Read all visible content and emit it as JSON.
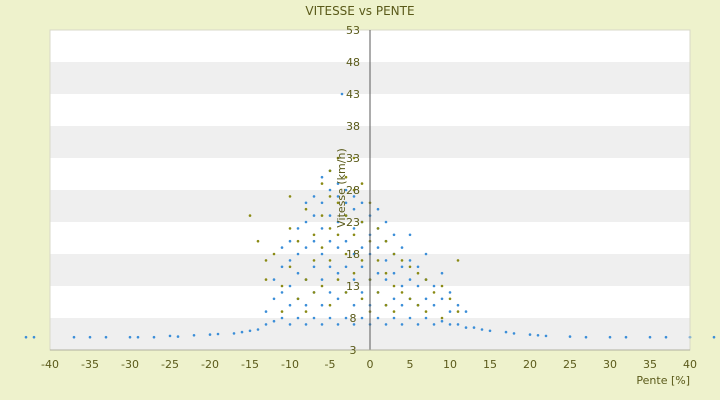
{
  "chart_data": {
    "type": "scatter",
    "title": "VITESSE vs PENTE",
    "xlabel": "Pente [%]",
    "ylabel": "Vitesse (km/h)",
    "xlim": [
      -40,
      40
    ],
    "ylim": [
      3,
      53
    ],
    "x_ticks": [
      -40,
      -35,
      -30,
      -25,
      -20,
      -15,
      -10,
      -5,
      0,
      5,
      10,
      15,
      20,
      25,
      30,
      35,
      40
    ],
    "y_ticks": [
      3,
      8,
      13,
      18,
      23,
      28,
      33,
      38,
      43,
      48,
      53
    ],
    "legend": "none",
    "grid": "horizontal banded",
    "colors": {
      "background": "#eef2cc",
      "plot_band_light": "#ffffff",
      "plot_band_dark": "#efefef",
      "series_blue": "#3b8ed8",
      "series_olive": "#8a8a14",
      "text": "#5a5a1a"
    },
    "series": [
      {
        "color": "#3b8ed8",
        "points": [
          [
            -43,
            5
          ],
          [
            -42,
            5
          ],
          [
            -37,
            5
          ],
          [
            -35,
            5
          ],
          [
            -33,
            5
          ],
          [
            -30,
            5
          ],
          [
            -29,
            5
          ],
          [
            -27,
            5
          ],
          [
            -25,
            5.2
          ],
          [
            -24,
            5.1
          ],
          [
            -22,
            5.3
          ],
          [
            -20,
            5.4
          ],
          [
            -19,
            5.5
          ],
          [
            -17,
            5.6
          ],
          [
            -16,
            5.8
          ],
          [
            -15,
            6
          ],
          [
            -14,
            6.2
          ],
          [
            -13,
            7
          ],
          [
            -13,
            9
          ],
          [
            -12,
            7.5
          ],
          [
            -12,
            11
          ],
          [
            -12,
            14
          ],
          [
            -11,
            8
          ],
          [
            -11,
            12
          ],
          [
            -11,
            16
          ],
          [
            -11,
            19
          ],
          [
            -10,
            7
          ],
          [
            -10,
            10
          ],
          [
            -10,
            13
          ],
          [
            -10,
            17
          ],
          [
            -10,
            20
          ],
          [
            -9,
            8
          ],
          [
            -9,
            11
          ],
          [
            -9,
            15
          ],
          [
            -9,
            18
          ],
          [
            -9,
            22
          ],
          [
            -8,
            7
          ],
          [
            -8,
            10
          ],
          [
            -8,
            14
          ],
          [
            -8,
            19
          ],
          [
            -8,
            23
          ],
          [
            -8,
            26
          ],
          [
            -7,
            8
          ],
          [
            -7,
            12
          ],
          [
            -7,
            16
          ],
          [
            -7,
            20
          ],
          [
            -7,
            24
          ],
          [
            -7,
            27
          ],
          [
            -6,
            7
          ],
          [
            -6,
            10
          ],
          [
            -6,
            14
          ],
          [
            -6,
            18
          ],
          [
            -6,
            22
          ],
          [
            -6,
            26
          ],
          [
            -6,
            30
          ],
          [
            -5,
            8
          ],
          [
            -5,
            12
          ],
          [
            -5,
            16
          ],
          [
            -5,
            20
          ],
          [
            -5,
            24
          ],
          [
            -5,
            28
          ],
          [
            -5,
            31
          ],
          [
            -4,
            7
          ],
          [
            -4,
            11
          ],
          [
            -4,
            15
          ],
          [
            -4,
            19
          ],
          [
            -4,
            23
          ],
          [
            -4,
            27
          ],
          [
            -4,
            29
          ],
          [
            -3.5,
            43
          ],
          [
            -3,
            8
          ],
          [
            -3,
            12
          ],
          [
            -3,
            16
          ],
          [
            -3,
            20
          ],
          [
            -3,
            24
          ],
          [
            -3,
            26
          ],
          [
            -3,
            28
          ],
          [
            -2,
            7
          ],
          [
            -2,
            10
          ],
          [
            -2,
            14
          ],
          [
            -2,
            18
          ],
          [
            -2,
            22
          ],
          [
            -2,
            25
          ],
          [
            -2,
            27
          ],
          [
            -1,
            8
          ],
          [
            -1,
            12
          ],
          [
            -1,
            16
          ],
          [
            -1,
            19
          ],
          [
            -1,
            23
          ],
          [
            -1,
            26
          ],
          [
            0,
            7
          ],
          [
            0,
            10
          ],
          [
            0,
            14
          ],
          [
            0,
            18
          ],
          [
            0,
            21
          ],
          [
            0,
            24
          ],
          [
            1,
            8
          ],
          [
            1,
            12
          ],
          [
            1,
            15
          ],
          [
            1,
            19
          ],
          [
            1,
            22
          ],
          [
            1,
            25
          ],
          [
            2,
            7
          ],
          [
            2,
            10
          ],
          [
            2,
            14
          ],
          [
            2,
            17
          ],
          [
            2,
            20
          ],
          [
            2,
            23
          ],
          [
            3,
            8
          ],
          [
            3,
            11
          ],
          [
            3,
            15
          ],
          [
            3,
            18
          ],
          [
            3,
            21
          ],
          [
            4,
            7
          ],
          [
            4,
            10
          ],
          [
            4,
            13
          ],
          [
            4,
            16
          ],
          [
            4,
            19
          ],
          [
            5,
            8
          ],
          [
            5,
            11
          ],
          [
            5,
            14
          ],
          [
            5,
            17
          ],
          [
            5,
            21
          ],
          [
            6,
            7
          ],
          [
            6,
            10
          ],
          [
            6,
            13
          ],
          [
            6,
            16
          ],
          [
            7,
            8
          ],
          [
            7,
            11
          ],
          [
            7,
            14
          ],
          [
            7,
            18
          ],
          [
            8,
            7
          ],
          [
            8,
            10
          ],
          [
            8,
            13
          ],
          [
            9,
            7.5
          ],
          [
            9,
            11
          ],
          [
            9,
            15
          ],
          [
            10,
            7
          ],
          [
            10,
            9
          ],
          [
            10,
            12
          ],
          [
            11,
            7
          ],
          [
            11,
            10
          ],
          [
            12,
            6.5
          ],
          [
            12,
            9
          ],
          [
            13,
            6.5
          ],
          [
            14,
            6.2
          ],
          [
            15,
            6
          ],
          [
            17,
            5.8
          ],
          [
            18,
            5.6
          ],
          [
            20,
            5.4
          ],
          [
            21,
            5.3
          ],
          [
            22,
            5.2
          ],
          [
            25,
            5.1
          ],
          [
            27,
            5
          ],
          [
            30,
            5
          ],
          [
            32,
            5
          ],
          [
            35,
            5
          ],
          [
            37,
            5
          ],
          [
            40,
            5
          ],
          [
            43,
            5
          ]
        ]
      },
      {
        "color": "#8a8a14",
        "points": [
          [
            -15,
            24
          ],
          [
            -14,
            20
          ],
          [
            -13,
            17
          ],
          [
            -13,
            14
          ],
          [
            -12,
            18
          ],
          [
            -11,
            13
          ],
          [
            -11,
            9
          ],
          [
            -10,
            27
          ],
          [
            -10,
            22
          ],
          [
            -10,
            16
          ],
          [
            -9,
            11
          ],
          [
            -9,
            20
          ],
          [
            -8,
            25
          ],
          [
            -8,
            14
          ],
          [
            -8,
            9
          ],
          [
            -7,
            21
          ],
          [
            -7,
            17
          ],
          [
            -7,
            12
          ],
          [
            -6,
            29
          ],
          [
            -6,
            24
          ],
          [
            -6,
            19
          ],
          [
            -6,
            13
          ],
          [
            -5,
            31
          ],
          [
            -5,
            27
          ],
          [
            -5,
            22
          ],
          [
            -5,
            17
          ],
          [
            -5,
            10
          ],
          [
            -4,
            33
          ],
          [
            -4,
            26
          ],
          [
            -4,
            21
          ],
          [
            -4,
            14
          ],
          [
            -3,
            30
          ],
          [
            -3,
            24
          ],
          [
            -3,
            18
          ],
          [
            -3,
            12
          ],
          [
            -2,
            33
          ],
          [
            -2,
            28
          ],
          [
            -2,
            21
          ],
          [
            -2,
            15
          ],
          [
            -1,
            29
          ],
          [
            -1,
            23
          ],
          [
            -1,
            17
          ],
          [
            -1,
            11
          ],
          [
            0,
            26
          ],
          [
            0,
            20
          ],
          [
            0,
            14
          ],
          [
            0,
            9
          ],
          [
            1,
            22
          ],
          [
            1,
            17
          ],
          [
            1,
            12
          ],
          [
            2,
            20
          ],
          [
            2,
            15
          ],
          [
            2,
            10
          ],
          [
            3,
            18
          ],
          [
            3,
            13
          ],
          [
            3,
            9
          ],
          [
            4,
            17
          ],
          [
            4,
            12
          ],
          [
            5,
            16
          ],
          [
            5,
            11
          ],
          [
            6,
            15
          ],
          [
            6,
            10
          ],
          [
            7,
            14
          ],
          [
            7,
            9
          ],
          [
            8,
            12
          ],
          [
            9,
            13
          ],
          [
            9,
            8
          ],
          [
            10,
            11
          ],
          [
            11,
            17
          ],
          [
            11,
            9
          ]
        ]
      }
    ]
  }
}
